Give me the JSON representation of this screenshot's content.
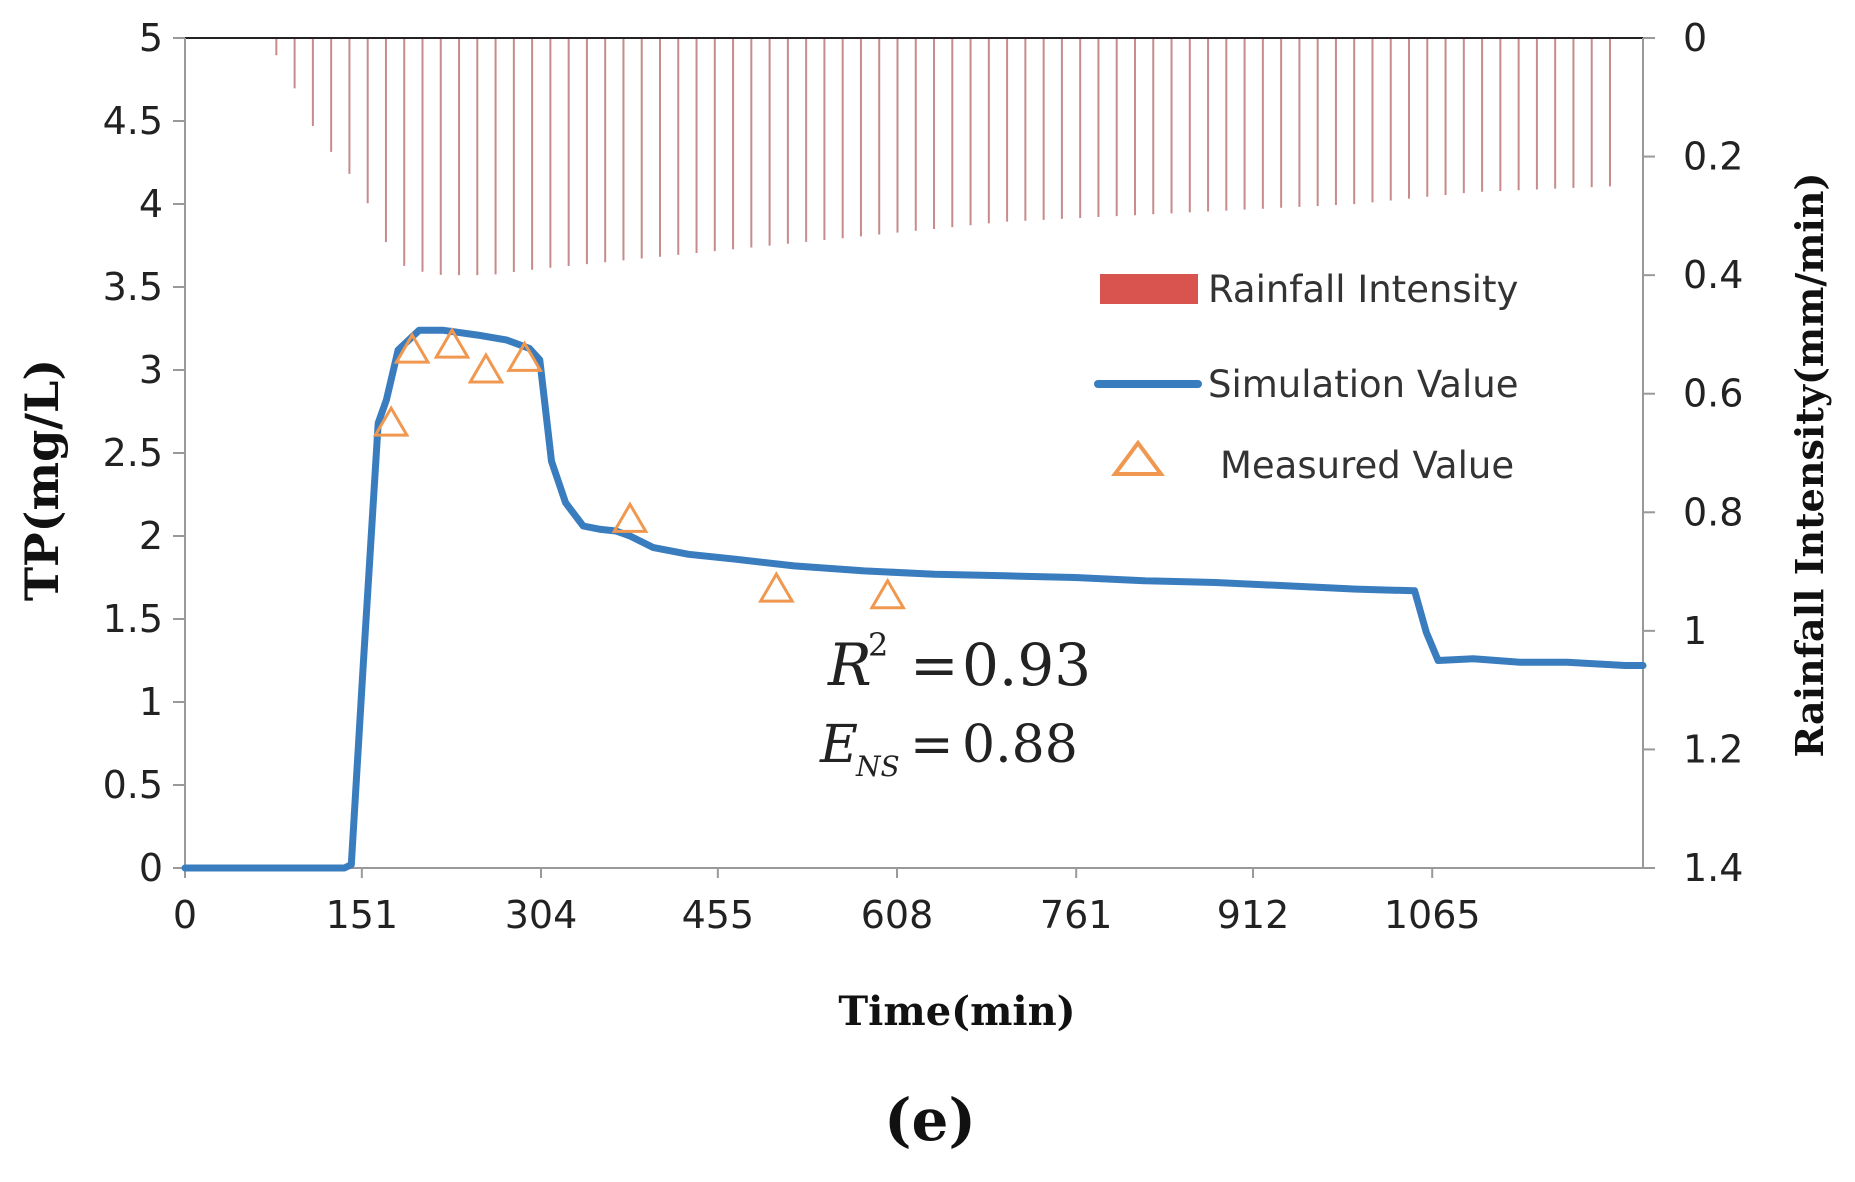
{
  "chart_data": {
    "type": "line",
    "panel_label": "(e)",
    "xlabel": "Time(min)",
    "ylabel": "TP(mg/L)",
    "y2label": "Rainfall Intensity(mm/min)",
    "xlim": [
      0,
      1245
    ],
    "ylim": [
      0,
      5
    ],
    "y2lim": [
      0,
      1.4
    ],
    "y2_inverted": true,
    "x_ticks": [
      "0",
      "151",
      "304",
      "455",
      "608",
      "761",
      "912",
      "1065"
    ],
    "x_tick_values": [
      0,
      151,
      304,
      455,
      608,
      761,
      912,
      1065
    ],
    "y_ticks": [
      "0",
      "0.5",
      "1",
      "1.5",
      "2",
      "2.5",
      "3",
      "3.5",
      "4",
      "4.5",
      "5"
    ],
    "y_tick_values": [
      0,
      0.5,
      1,
      1.5,
      2,
      2.5,
      3,
      3.5,
      4,
      4.5,
      5
    ],
    "y2_ticks": [
      "0",
      "0.2",
      "0.4",
      "0.6",
      "0.8",
      "1",
      "1.2",
      "1.4"
    ],
    "y2_tick_values": [
      0,
      0.2,
      0.4,
      0.6,
      0.8,
      1.0,
      1.2,
      1.4
    ],
    "legend": {
      "position": "right",
      "entries": [
        "Rainfall Intensity",
        "Simulation Value",
        "Measured Value"
      ]
    },
    "series": [
      {
        "name": "Simulation Value",
        "kind": "line",
        "color": "#3a7dbf",
        "x": [
          0,
          136,
          142,
          152,
          165,
          172,
          182,
          200,
          220,
          250,
          275,
          294,
          303,
          313,
          325,
          340,
          355,
          368,
          380,
          400,
          430,
          470,
          520,
          580,
          640,
          700,
          760,
          820,
          880,
          940,
          1000,
          1050,
          1060,
          1070,
          1100,
          1140,
          1180,
          1230,
          1245
        ],
        "values": [
          0,
          0,
          0.02,
          1.2,
          2.68,
          2.82,
          3.12,
          3.24,
          3.24,
          3.21,
          3.18,
          3.13,
          3.06,
          2.45,
          2.2,
          2.06,
          2.04,
          2.03,
          2.0,
          1.93,
          1.89,
          1.86,
          1.82,
          1.79,
          1.77,
          1.76,
          1.75,
          1.73,
          1.72,
          1.7,
          1.68,
          1.67,
          1.42,
          1.25,
          1.26,
          1.24,
          1.24,
          1.22,
          1.22
        ]
      },
      {
        "name": "Measured Value",
        "kind": "scatter",
        "color": "#f09850",
        "x": [
          176,
          194,
          228,
          257,
          290,
          380,
          505,
          600
        ],
        "values": [
          2.68,
          3.12,
          3.15,
          3.0,
          3.07,
          2.1,
          1.68,
          1.64
        ]
      },
      {
        "name": "Rainfall Intensity",
        "kind": "bar",
        "axis": "y2",
        "color": "#c88a8a",
        "profile_x": [
          0,
          60,
          70,
          80,
          95,
          112,
          128,
          145,
          162,
          175,
          190,
          220,
          260,
          300,
          350,
          400,
          500,
          600,
          700,
          800,
          900,
          1000,
          1100,
          1220
        ],
        "profile_values": [
          0,
          0,
          0.005,
          0.035,
          0.09,
          0.16,
          0.2,
          0.24,
          0.3,
          0.36,
          0.39,
          0.4,
          0.4,
          0.39,
          0.38,
          0.37,
          0.35,
          0.33,
          0.31,
          0.3,
          0.29,
          0.28,
          0.26,
          0.25
        ],
        "bar_spacing_min": 15.6
      }
    ],
    "annotations": [
      {
        "label": "R",
        "superscript": "2",
        "operator": "=",
        "value": "0.93"
      },
      {
        "label": "E",
        "subscript": "NS",
        "operator": "=",
        "value": "0.88"
      }
    ]
  }
}
